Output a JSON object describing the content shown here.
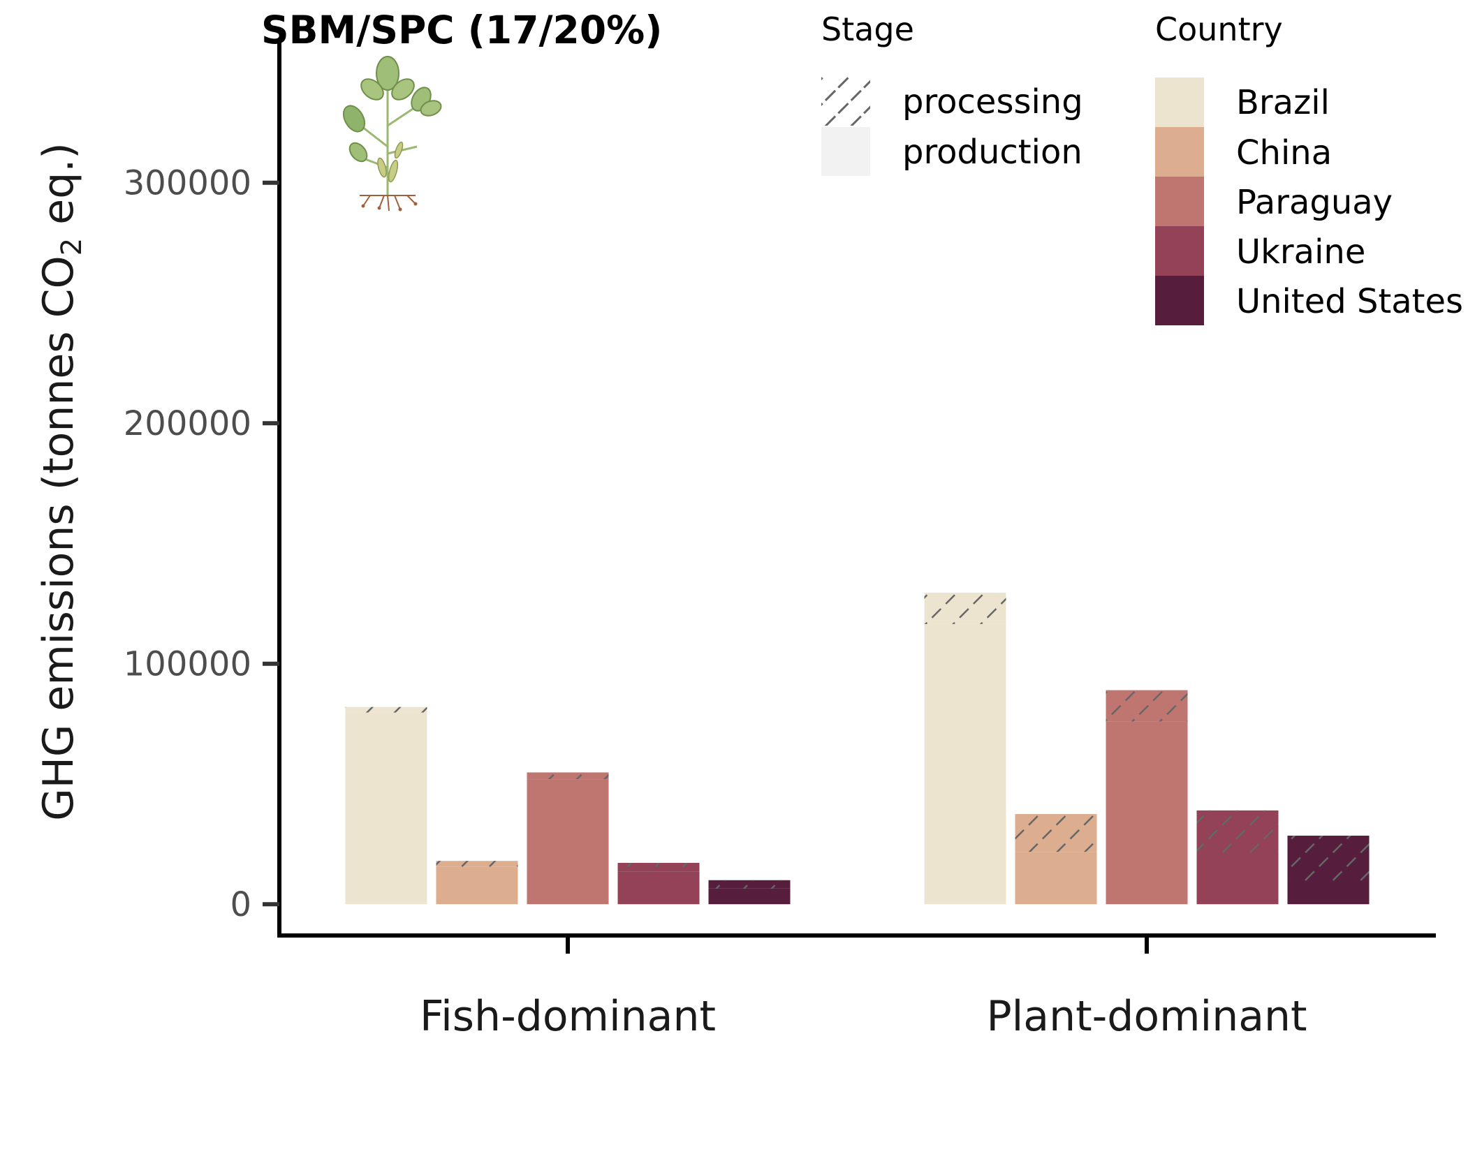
{
  "chart_data": {
    "type": "bar",
    "title": "SBM/SPC (17/20%)",
    "ylabel_pre": "GHG emissions (tonnes CO",
    "ylabel_sub": "2",
    "ylabel_post": " eq.)",
    "xlabel": "",
    "ylim": [
      -13000,
      360000
    ],
    "yticks": [
      0,
      100000,
      200000,
      300000
    ],
    "ytick_labels": [
      "0",
      "100000",
      "200000",
      "300000"
    ],
    "grid": false,
    "categories": [
      "Fish-dominant",
      "Plant-dominant"
    ],
    "countries": [
      "Brazil",
      "China",
      "Paraguay",
      "Ukraine",
      "United States"
    ],
    "stages": [
      "processing",
      "production"
    ],
    "series": [
      {
        "name": "Brazil",
        "production": [
          79700,
          116500
        ],
        "total": [
          82000,
          129500
        ]
      },
      {
        "name": "China",
        "production": [
          15500,
          21800
        ],
        "total": [
          18000,
          37500
        ]
      },
      {
        "name": "Paraguay",
        "production": [
          52000,
          76000
        ],
        "total": [
          54800,
          89000
        ]
      },
      {
        "name": "Ukraine",
        "production": [
          13500,
          19800
        ],
        "total": [
          17200,
          39000
        ]
      },
      {
        "name": "United States",
        "production": [
          6500,
          9500
        ],
        "total": [
          10000,
          28500
        ]
      }
    ],
    "legend": {
      "placement": "top-right",
      "stage_title": "Stage",
      "country_title": "Country"
    }
  },
  "colors": {
    "Brazil": "#ede4cf",
    "China": "#dcae8f",
    "Paraguay": "#c07670",
    "Ukraine": "#934258",
    "United States": "#561d3d",
    "hatch": "#666666",
    "axis": "#000000",
    "tick_text": "#4d4d4d",
    "production_key": "#f2f2f2"
  },
  "icon": "soybean-plant-icon"
}
